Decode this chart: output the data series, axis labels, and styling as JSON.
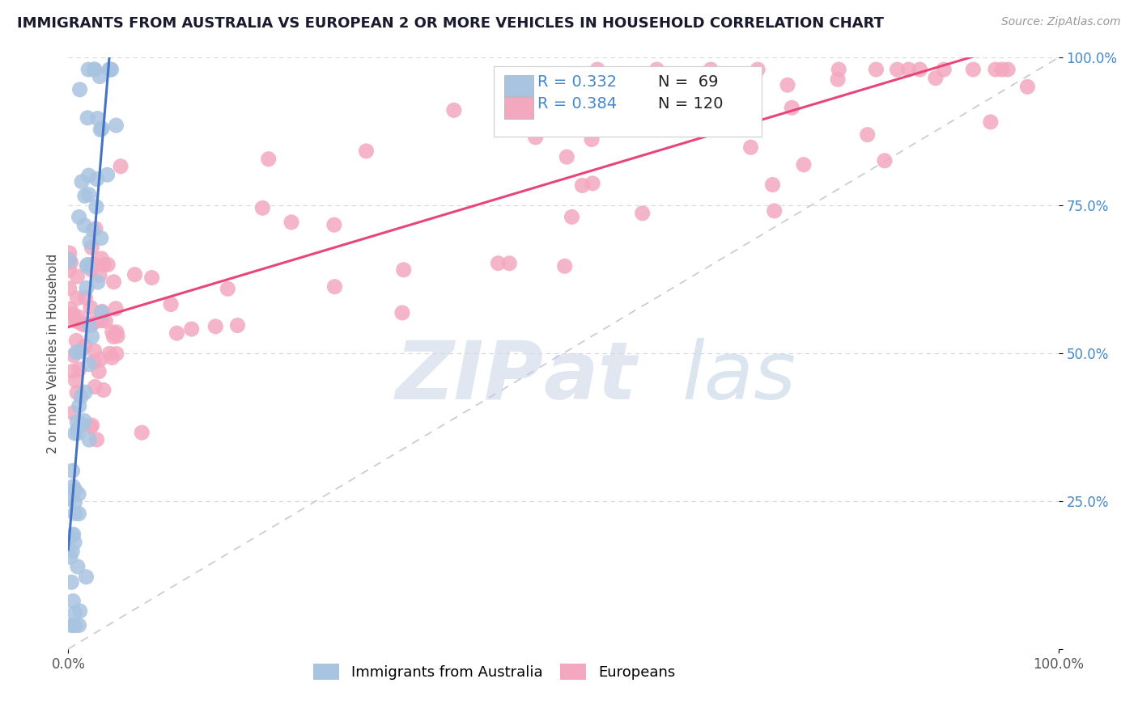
{
  "title": "IMMIGRANTS FROM AUSTRALIA VS EUROPEAN 2 OR MORE VEHICLES IN HOUSEHOLD CORRELATION CHART",
  "source": "Source: ZipAtlas.com",
  "ylabel": "2 or more Vehicles in Household",
  "r_australia": 0.332,
  "n_australia": 69,
  "r_european": 0.384,
  "n_european": 120,
  "color_australia": "#a8c4e0",
  "color_european": "#f4a8c0",
  "trendline_australia": "#4472c4",
  "trendline_european": "#e8457a",
  "diagonal_color": "#c8c8d8",
  "background_color": "#ffffff",
  "grid_color": "#d8d8e4",
  "watermark_color": "#ccd8e8",
  "legend_r_color": "#4488cc",
  "tick_y_color": "#4488cc",
  "legend_border": "#cccccc",
  "seed_aus": 42,
  "seed_eur": 17
}
